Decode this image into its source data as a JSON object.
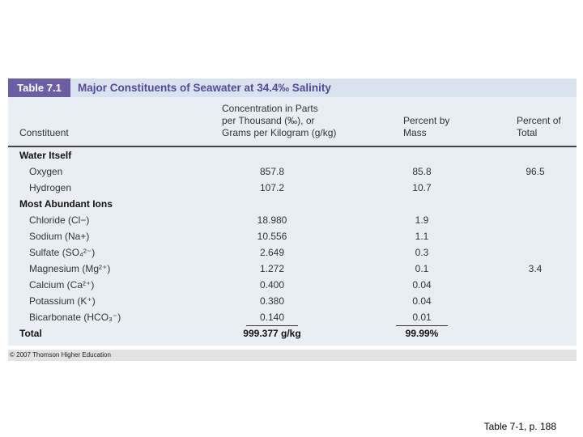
{
  "header": {
    "label": "Table 7.1",
    "title": "Major Constituents of Seawater at 34.4‰ Salinity"
  },
  "table": {
    "columns": [
      [
        "Constituent"
      ],
      [
        "Concentration in Parts",
        "per Thousand (‰), or",
        "Grams per Kilogram (g/kg)"
      ],
      [
        "Percent by",
        "Mass"
      ],
      [
        "Percent of",
        "Total"
      ]
    ],
    "rows": [
      [
        "Water Itself"
      ],
      [
        "Oxygen",
        "857.8",
        "85.8",
        "96.5"
      ],
      [
        "Hydrogen",
        "107.2",
        "10.7"
      ],
      [
        "Most Abundant Ions"
      ],
      [
        "Chloride (Cl−)",
        "18.980",
        "1.9"
      ],
      [
        "Sodium (Na+)",
        "10.556",
        "1.1"
      ],
      [
        "Sulfate (SO₄²⁻)",
        "2.649",
        "0.3"
      ],
      [
        "Magnesium (Mg²⁺)",
        "1.272",
        "0.1",
        "3.4"
      ],
      [
        "Calcium (Ca²⁺)",
        "0.400",
        "0.04"
      ],
      [
        "Potassium (K⁺)",
        "0.380",
        "0.04"
      ],
      [
        "Bicarbonate (HCO₃⁻)",
        "0.140",
        "0.01"
      ],
      [
        "Total",
        "999.377 g/kg",
        "99.99%"
      ]
    ]
  },
  "footer": "© 2007 Thomson Higher Education",
  "caption": "Table 7-1, p. 188"
}
